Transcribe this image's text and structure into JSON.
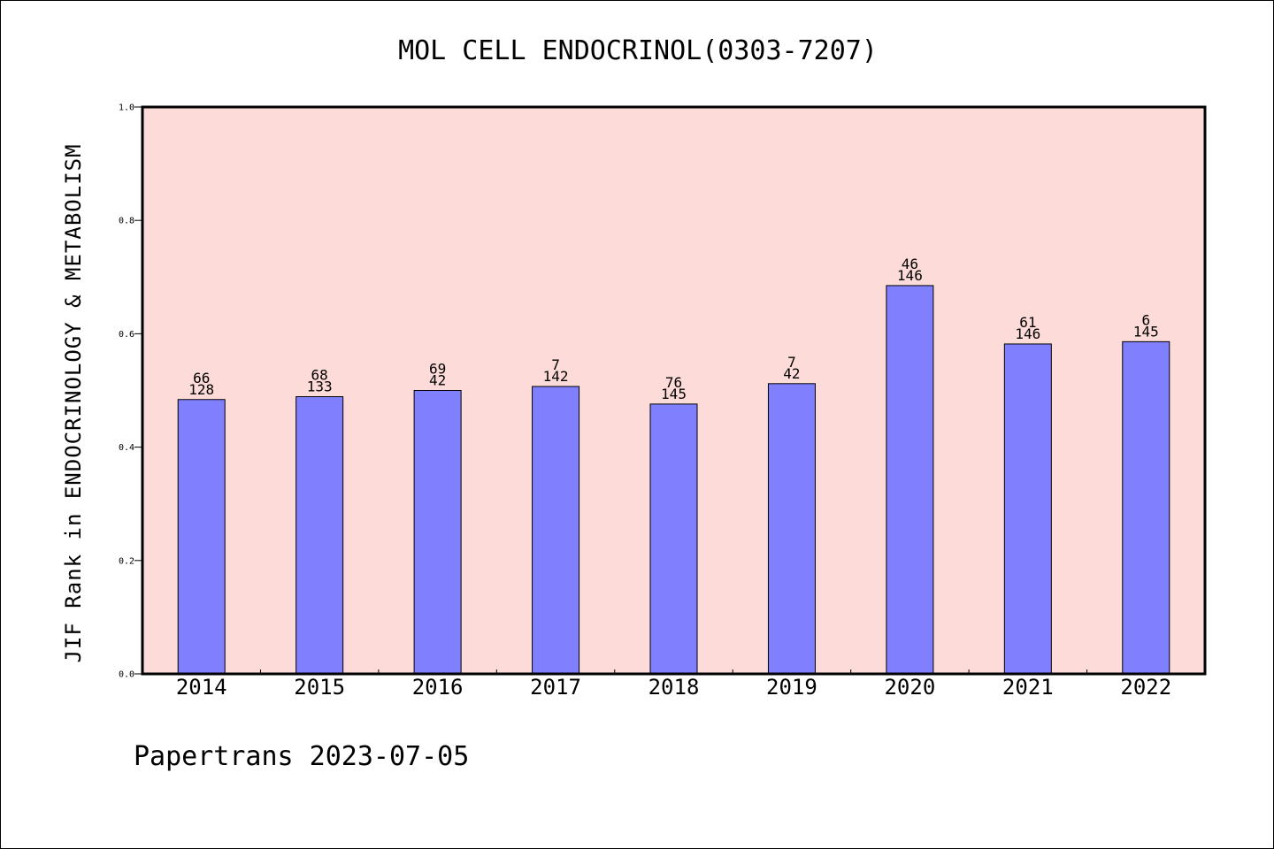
{
  "chart_data": {
    "type": "bar",
    "title": "MOL CELL ENDOCRINOL(0303-7207)",
    "xlabel": "",
    "ylabel": "JIF Rank in ENDOCRINOLOGY & METABOLISM",
    "categories": [
      "2014",
      "2015",
      "2016",
      "2017",
      "2018",
      "2019",
      "2020",
      "2021",
      "2022"
    ],
    "values": [
      0.484,
      0.489,
      0.5,
      0.507,
      0.476,
      0.512,
      0.685,
      0.582,
      0.586
    ],
    "rank_labels": [
      "66",
      "68",
      "69",
      "7",
      "76",
      "7",
      "46",
      "61",
      "6"
    ],
    "total_labels": [
      "128",
      "133",
      "42",
      "142",
      "145",
      "42",
      "146",
      "146",
      "145"
    ],
    "ylim": [
      0,
      1.0
    ],
    "yticks": [
      "0.0",
      "0.2",
      "0.4",
      "0.6",
      "0.8",
      "1.0"
    ],
    "grid": false,
    "colors": {
      "background": "#fddbd8",
      "bar": "#8080ff",
      "frame": "#000000"
    }
  },
  "footer": {
    "text": "Papertrans 2023-07-05"
  }
}
